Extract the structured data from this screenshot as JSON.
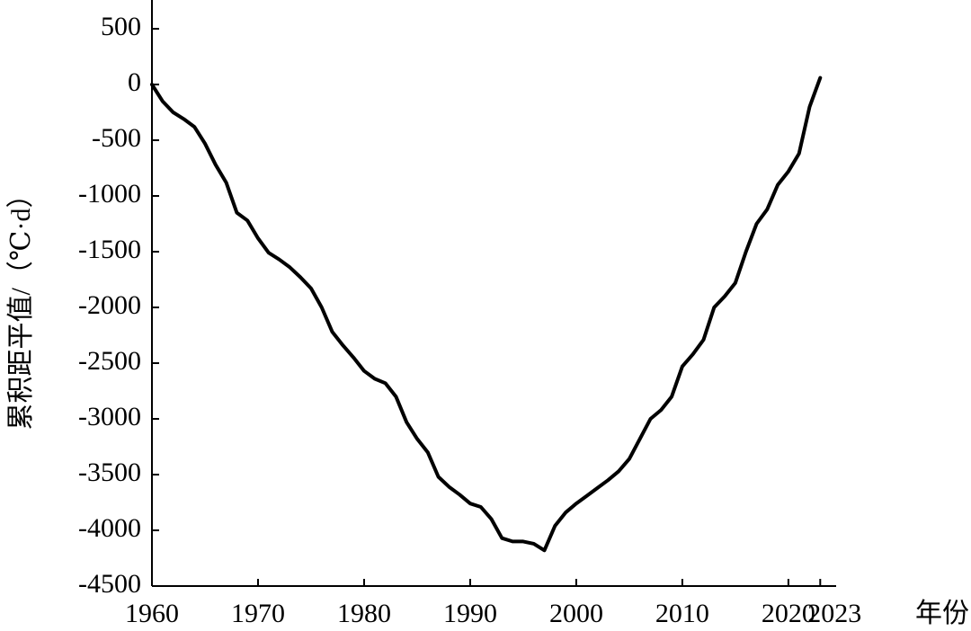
{
  "chart_data": {
    "type": "line",
    "y_label": "累积距平值/（℃·d）",
    "x_label": "年份",
    "x": [
      1960,
      1961,
      1962,
      1963,
      1964,
      1965,
      1966,
      1967,
      1968,
      1969,
      1970,
      1971,
      1972,
      1973,
      1974,
      1975,
      1976,
      1977,
      1978,
      1979,
      1980,
      1981,
      1982,
      1983,
      1984,
      1985,
      1986,
      1987,
      1988,
      1989,
      1990,
      1991,
      1992,
      1993,
      1994,
      1995,
      1996,
      1997,
      1998,
      1999,
      2000,
      2001,
      2002,
      2003,
      2004,
      2005,
      2006,
      2007,
      2008,
      2009,
      2010,
      2011,
      2012,
      2013,
      2014,
      2015,
      2016,
      2017,
      2018,
      2019,
      2020,
      2021,
      2022,
      2023
    ],
    "series": [
      {
        "color": "#000000",
        "values": [
          0,
          -150,
          -250,
          -310,
          -380,
          -530,
          -720,
          -880,
          -1150,
          -1220,
          -1380,
          -1510,
          -1570,
          -1640,
          -1730,
          -1830,
          -2000,
          -2220,
          -2340,
          -2450,
          -2570,
          -2640,
          -2680,
          -2800,
          -3030,
          -3180,
          -3300,
          -3520,
          -3610,
          -3680,
          -3760,
          -3790,
          -3900,
          -4070,
          -4100,
          -4100,
          -4120,
          -4180,
          -3960,
          -3840,
          -3760,
          -3690,
          -3620,
          -3550,
          -3470,
          -3360,
          -3180,
          -3000,
          -2920,
          -2800,
          -2530,
          -2420,
          -2290,
          -2000,
          -1900,
          -1780,
          -1500,
          -1250,
          -1120,
          -900,
          -780,
          -620,
          -200,
          60
        ]
      }
    ],
    "xlim": [
      1960,
      2024.5
    ],
    "ylim": [
      -4500,
      750
    ],
    "xticks": [
      1960,
      1970,
      1980,
      1990,
      2000,
      2010,
      2020,
      2023
    ],
    "yticks": [
      500,
      0,
      -500,
      -1000,
      -1500,
      -2000,
      -2500,
      -3000,
      -3500,
      -4000,
      -4500
    ]
  }
}
